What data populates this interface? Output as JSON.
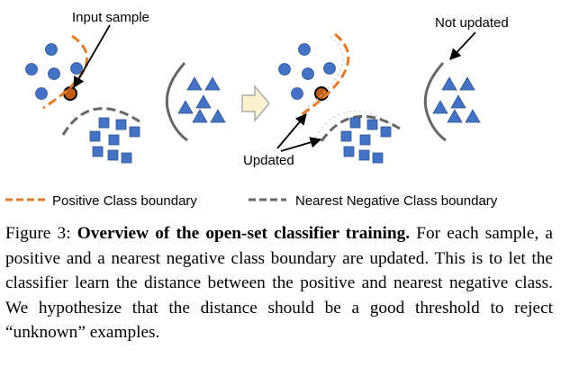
{
  "annotations": {
    "input_sample": "Input sample",
    "not_updated": "Not updated",
    "updated": "Updated"
  },
  "legend": {
    "positive": "Positive Class boundary",
    "negative": "Nearest Negative Class boundary"
  },
  "caption": {
    "label": "Figure 3:",
    "title": "Overview of the open-set classifier training.",
    "body": "For each sample, a positive and a nearest negative class boundary are updated. This is to let the classifier learn the distance between the positive and nearest negative class. We hypothesize that the distance should be a good threshold to reject “unknown” examples."
  },
  "colors": {
    "circle_fill": "#4472C4",
    "positive_boundary": "#E07B2A",
    "negative_boundary": "#666666",
    "sample_fill": "#C55A11",
    "arrow_fill": "#FFF2CC",
    "arrow_stroke": "#AAAAAA"
  }
}
